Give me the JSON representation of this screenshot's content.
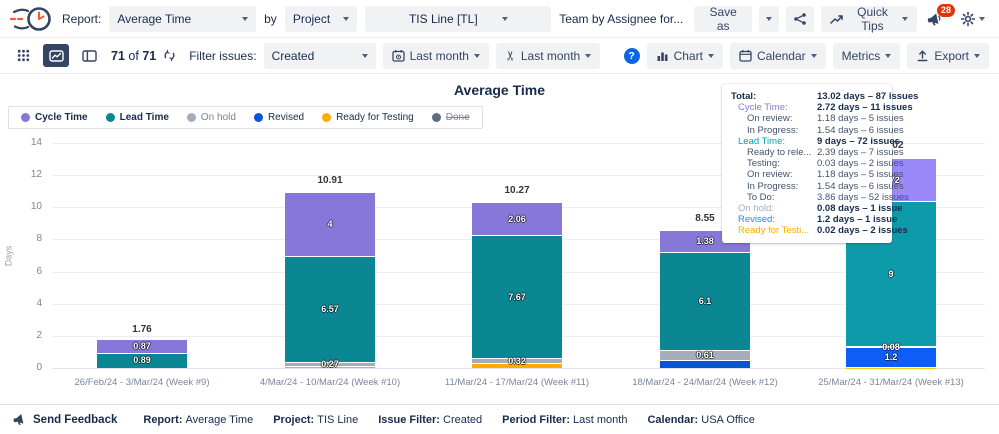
{
  "header": {
    "report_label": "Report:",
    "report_value": "Average Time",
    "by_label": "by",
    "group_by_value": "Project",
    "project_value": "TIS Line [TL]",
    "team_link": "Team by Assignee for...",
    "save_as_label": "Save as",
    "quick_tips_label": "Quick Tips",
    "notification_count": "28"
  },
  "toolbar": {
    "issues_shown": "71",
    "of_label": "of",
    "issues_total": "71",
    "filter_issues_label": "Filter issues:",
    "filter_value": "Created",
    "period_value": "Last month",
    "workweek_value": "Last month",
    "help_label": "?",
    "chart_label": "Chart",
    "calendar_label": "Calendar",
    "metrics_label": "Metrics",
    "export_label": "Export"
  },
  "chart_data": {
    "type": "bar",
    "stacked": true,
    "title": "Average Time",
    "ylabel": "Days",
    "ylim": [
      0,
      14
    ],
    "ytick_step": 2,
    "grid": true,
    "legend_position": "top-left",
    "categories": [
      "26/Feb/24 - 3/Mar/24 (Week #9)",
      "4/Mar/24 - 10/Mar/24 (Week #10)",
      "11/Mar/24 - 17/Mar/24 (Week #11)",
      "18/Mar/24 - 24/Mar/24 (Week #12)",
      "25/Mar/24 - 31/Mar/24 (Week #13)"
    ],
    "series": [
      {
        "name": "Cycle Time",
        "color": "#8777D9",
        "values": [
          0.87,
          4,
          2.06,
          1.38,
          2.72
        ],
        "legend_bold": true
      },
      {
        "name": "Lead Time",
        "color": "#0B8793",
        "values": [
          0.89,
          6.57,
          7.67,
          6.1,
          9
        ],
        "legend_bold": true
      },
      {
        "name": "On hold",
        "color": "#A5ADBA",
        "values": [
          0,
          0.27,
          0.32,
          0.61,
          0.08
        ],
        "legend_muted": true
      },
      {
        "name": "Revised",
        "color": "#0A52D6",
        "values": [
          0,
          0,
          0,
          0.46,
          1.2
        ]
      },
      {
        "name": "Ready for Testing",
        "color": "#FFAB00",
        "values": [
          0,
          0.07,
          0.22,
          0,
          0.02
        ]
      },
      {
        "name": "Done",
        "color": "#5E6C84",
        "values": [
          0,
          0,
          0,
          0,
          0
        ],
        "legend_muted": true,
        "legend_strikethrough": true
      }
    ],
    "stack_order_bottom_to_top": [
      "Ready for Testing",
      "Revised",
      "On hold",
      "Lead Time",
      "Cycle Time"
    ],
    "totals": [
      "1.76",
      "10.91",
      "10.27",
      "8.55",
      "13.02"
    ],
    "segment_labels": [
      {
        "Cycle Time": "0.87",
        "Lead Time": "0.89"
      },
      {
        "Cycle Time": "4",
        "Lead Time": "6.57",
        "On hold": "0.27"
      },
      {
        "Cycle Time": "2.06",
        "Lead Time": "7.67",
        "On hold": "0.32"
      },
      {
        "Cycle Time": "1.38",
        "Lead Time": "6.1",
        "On hold": "0.61"
      },
      {
        "Cycle Time": "2.72",
        "Lead Time": "9",
        "On hold": "0.08",
        "Revised": "1.2"
      }
    ],
    "highlighted_bar_index": 4
  },
  "tooltip": {
    "rows": [
      {
        "label": "Total:",
        "value": "13.02 days – 87 issues",
        "level": 0,
        "color": "#172B4D",
        "bold_label": true,
        "bold_value": true
      },
      {
        "label": "Cycle Time:",
        "value": "2.72 days – 11 issues",
        "level": 1,
        "color": "#8777D9",
        "bold_value": true
      },
      {
        "label": "On review:",
        "value": "1.18 days – 5 issues",
        "level": 2
      },
      {
        "label": "In Progress:",
        "value": "1.54 days – 6 issues",
        "level": 2
      },
      {
        "label": "Lead Time:",
        "value": "9 days – 72 issues",
        "level": 1,
        "color": "#00A3BF",
        "bold_value": true
      },
      {
        "label": "Ready to rele...",
        "value": "2.39 days – 7 issues",
        "level": 2
      },
      {
        "label": "Testing:",
        "value": "0.03 days – 2 issues",
        "level": 2
      },
      {
        "label": "On review:",
        "value": "1.18 days – 5 issues",
        "level": 2
      },
      {
        "label": "In Progress:",
        "value": "1.54 days – 6 issues",
        "level": 2
      },
      {
        "label": "To Do:",
        "value": "3.86 days – 52 issues",
        "level": 2
      },
      {
        "label": "On hold:",
        "value": "0.08 days – 1 issue",
        "level": 1,
        "color": "#A5ADBA",
        "bold_value": true
      },
      {
        "label": "Revised:",
        "value": "1.2 days – 1 issue",
        "level": 1,
        "color": "#2684FF",
        "bold_value": true
      },
      {
        "label": "Ready for Testi...",
        "value": "0.02 days – 2 issues",
        "level": 1,
        "color": "#FFAB00",
        "bold_value": true
      }
    ]
  },
  "footer": {
    "send_feedback": "Send Feedback",
    "items": [
      {
        "label": "Report:",
        "value": "Average Time"
      },
      {
        "label": "Project:",
        "value": "TIS Line"
      },
      {
        "label": "Issue Filter:",
        "value": "Created"
      },
      {
        "label": "Period Filter:",
        "value": "Last month"
      },
      {
        "label": "Calendar:",
        "value": "USA Office"
      }
    ]
  }
}
